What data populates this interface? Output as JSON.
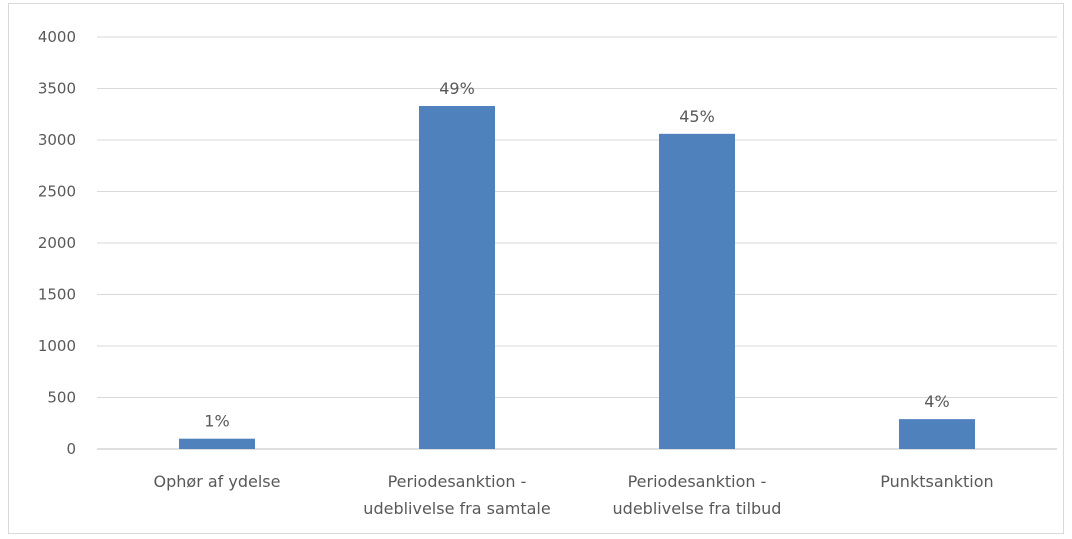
{
  "chart_data": {
    "type": "bar",
    "categories": [
      [
        "Ophør af ydelse"
      ],
      [
        "Periodesanktion -",
        "udeblivelse fra samtale"
      ],
      [
        "Periodesanktion -",
        "udeblivelse fra tilbud"
      ],
      [
        "Punktsanktion"
      ]
    ],
    "values": [
      100,
      3330,
      3060,
      290
    ],
    "data_labels": [
      "1%",
      "49%",
      "45%",
      "4%"
    ],
    "title": "",
    "xlabel": "",
    "ylabel": "",
    "ylim": [
      0,
      4000
    ],
    "yticks": [
      0,
      500,
      1000,
      1500,
      2000,
      2500,
      3000,
      3500,
      4000
    ],
    "grid": true,
    "legend": "none",
    "bar_color": "#4f81bd",
    "grid_color": "#d9d9d9",
    "text_color": "#595959"
  }
}
